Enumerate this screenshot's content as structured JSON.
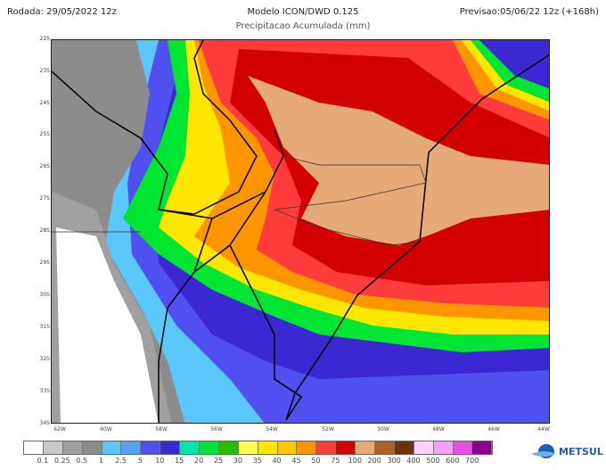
{
  "header": {
    "run": "Rodada: 29/05/2022 12z",
    "model": "Modelo ICON/DWD 0.125",
    "variable": "Precipitacao Acumulada (mm)",
    "forecast": "Previsao:05/06/22 12z (+168h)"
  },
  "map": {
    "lat_labels": [
      "22S",
      "23S",
      "24S",
      "25S",
      "26S",
      "27S",
      "28S",
      "29S",
      "30S",
      "31S",
      "32S",
      "33S",
      "34S"
    ],
    "lon_labels": [
      "62W",
      "60W",
      "58W",
      "56W",
      "54W",
      "52W",
      "50W",
      "48W",
      "46W",
      "44W"
    ]
  },
  "legend": {
    "colors": [
      "#ffffff",
      "#c8c8c8",
      "#a0a0a0",
      "#8c8c8c",
      "#5ac8fa",
      "#5aa0f5",
      "#5050f0",
      "#3c28d2",
      "#00e6aa",
      "#00e632",
      "#28be00",
      "#ffff50",
      "#ffe600",
      "#ffc800",
      "#ff9600",
      "#ff3c3c",
      "#d20000",
      "#e6aa78",
      "#aa6428",
      "#6e320a",
      "#fad2fa",
      "#f5a0f5",
      "#e650e6",
      "#8c008c"
    ],
    "labels": [
      "0.1",
      "0.25",
      "0.5",
      "1",
      "2.5",
      "5",
      "10",
      "15",
      "20",
      "25",
      "30",
      "35",
      "40",
      "45",
      "50",
      "75",
      "100",
      "200",
      "300",
      "400",
      "500",
      "600",
      "700"
    ]
  },
  "logo": {
    "text": "METSUL"
  }
}
